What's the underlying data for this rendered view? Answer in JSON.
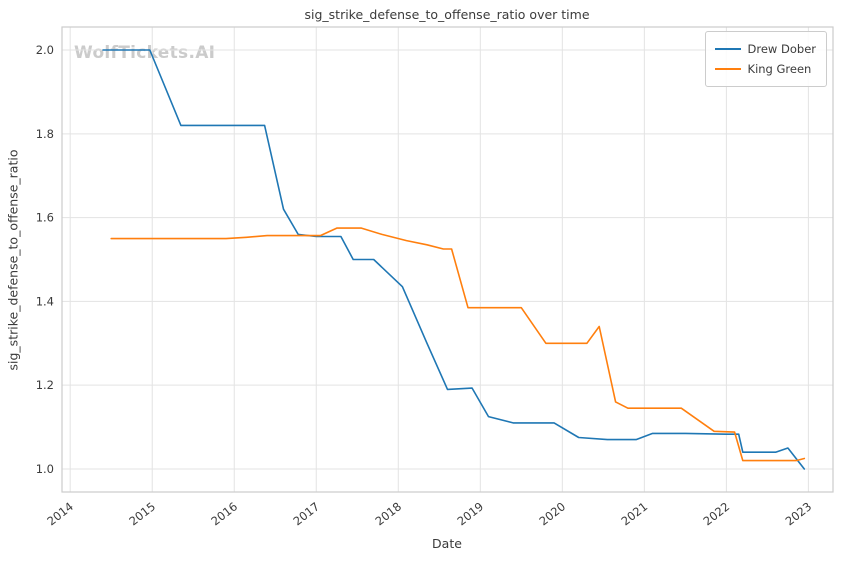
{
  "figure": {
    "title": "sig_strike_defense_to_offense_ratio over time",
    "watermark": "WolfTickets.AI",
    "xlabel": "Date",
    "ylabel": "sig_strike_defense_to_offense_ratio"
  },
  "legend": {
    "position": "upper right",
    "entries": [
      {
        "label": "Drew Dober",
        "color": "#1f77b4"
      },
      {
        "label": "King Green",
        "color": "#ff7f0e"
      }
    ]
  },
  "chart_data": {
    "type": "line",
    "title": "sig_strike_defense_to_offense_ratio over time",
    "xlabel": "Date",
    "ylabel": "sig_strike_defense_to_offense_ratio",
    "xlim": [
      2013.9,
      2023.3
    ],
    "ylim": [
      0.945,
      2.055
    ],
    "xticks": [
      2014,
      2015,
      2016,
      2017,
      2018,
      2019,
      2020,
      2021,
      2022,
      2023
    ],
    "yticks": [
      1.0,
      1.2,
      1.4,
      1.6,
      1.8,
      2.0
    ],
    "ytick_labels": [
      "1.0",
      "1.2",
      "1.4",
      "1.6",
      "1.8",
      "2.0"
    ],
    "grid": true,
    "legend_position": "upper right",
    "grid_color": "#e3e3e3",
    "frame_color": "#cccccc",
    "series": [
      {
        "name": "Drew Dober",
        "color": "#1f77b4",
        "points": [
          [
            2014.4,
            2.0
          ],
          [
            2014.97,
            2.0
          ],
          [
            2015.35,
            1.82
          ],
          [
            2016.37,
            1.82
          ],
          [
            2016.6,
            1.62
          ],
          [
            2016.78,
            1.56
          ],
          [
            2017.0,
            1.555
          ],
          [
            2017.3,
            1.555
          ],
          [
            2017.45,
            1.5
          ],
          [
            2017.7,
            1.5
          ],
          [
            2018.05,
            1.435
          ],
          [
            2018.35,
            1.3
          ],
          [
            2018.6,
            1.19
          ],
          [
            2018.9,
            1.193
          ],
          [
            2019.1,
            1.125
          ],
          [
            2019.4,
            1.11
          ],
          [
            2019.9,
            1.11
          ],
          [
            2020.2,
            1.075
          ],
          [
            2020.55,
            1.07
          ],
          [
            2020.9,
            1.07
          ],
          [
            2021.1,
            1.085
          ],
          [
            2021.5,
            1.085
          ],
          [
            2022.0,
            1.083
          ],
          [
            2022.15,
            1.083
          ],
          [
            2022.2,
            1.04
          ],
          [
            2022.6,
            1.04
          ],
          [
            2022.75,
            1.05
          ],
          [
            2022.95,
            1.0
          ]
        ]
      },
      {
        "name": "King Green",
        "color": "#ff7f0e",
        "points": [
          [
            2014.5,
            1.55
          ],
          [
            2015.9,
            1.55
          ],
          [
            2016.15,
            1.553
          ],
          [
            2016.4,
            1.557
          ],
          [
            2017.05,
            1.557
          ],
          [
            2017.25,
            1.575
          ],
          [
            2017.55,
            1.575
          ],
          [
            2017.8,
            1.56
          ],
          [
            2018.1,
            1.545
          ],
          [
            2018.35,
            1.535
          ],
          [
            2018.55,
            1.525
          ],
          [
            2018.65,
            1.525
          ],
          [
            2018.85,
            1.385
          ],
          [
            2019.5,
            1.385
          ],
          [
            2019.8,
            1.3
          ],
          [
            2020.3,
            1.3
          ],
          [
            2020.45,
            1.34
          ],
          [
            2020.65,
            1.16
          ],
          [
            2020.8,
            1.145
          ],
          [
            2021.45,
            1.145
          ],
          [
            2021.85,
            1.09
          ],
          [
            2022.1,
            1.088
          ],
          [
            2022.2,
            1.02
          ],
          [
            2022.85,
            1.02
          ],
          [
            2022.95,
            1.025
          ]
        ]
      }
    ]
  }
}
